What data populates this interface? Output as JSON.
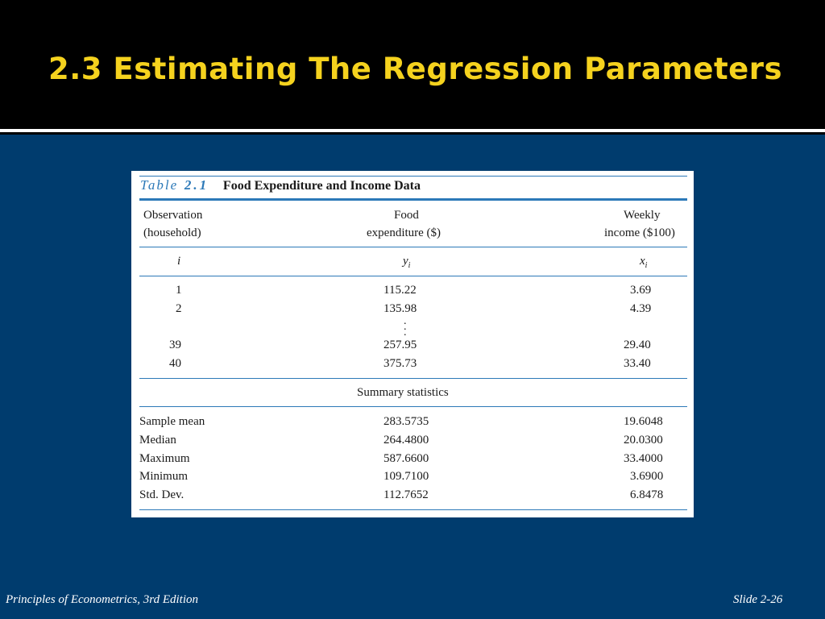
{
  "slide": {
    "title": "2.3 Estimating The Regression Parameters",
    "footer_left": "Principles of Econometrics, 3rd Edition",
    "footer_right": "Slide 2-26"
  },
  "table": {
    "caption_label": "Table",
    "caption_number": "2.1",
    "caption_title": "Food Expenditure and Income Data",
    "headers": {
      "col1_line1": "Observation",
      "col1_line2": "(household)",
      "col2_line1": "Food",
      "col2_line2": "expenditure ($)",
      "col3_line1": "Weekly",
      "col3_line2": "income ($100)"
    },
    "symbols": {
      "i": "i",
      "y": "y",
      "y_sub": "i",
      "x": "x",
      "x_sub": "i"
    },
    "rows": [
      {
        "obs": "1",
        "food": "115.22",
        "income": "3.69"
      },
      {
        "obs": "2",
        "food": "135.98",
        "income": "4.39"
      },
      {
        "obs": "39",
        "food": "257.95",
        "income": "29.40"
      },
      {
        "obs": "40",
        "food": "375.73",
        "income": "33.40"
      }
    ],
    "summary_heading": "Summary statistics",
    "summary": [
      {
        "label": "Sample mean",
        "food": "283.5735",
        "income": "19.6048"
      },
      {
        "label": "Median",
        "food": "264.4800",
        "income": "20.0300"
      },
      {
        "label": "Maximum",
        "food": "587.6600",
        "income": "33.4000"
      },
      {
        "label": "Minimum",
        "food": "109.7100",
        "income": "3.6900"
      },
      {
        "label": "Std. Dev.",
        "food": "112.7652",
        "income": "6.8478"
      }
    ]
  },
  "colors": {
    "background": "#003c6e",
    "header_band": "#000000",
    "title": "#f5d21e",
    "table_rule": "#2c79b8"
  }
}
